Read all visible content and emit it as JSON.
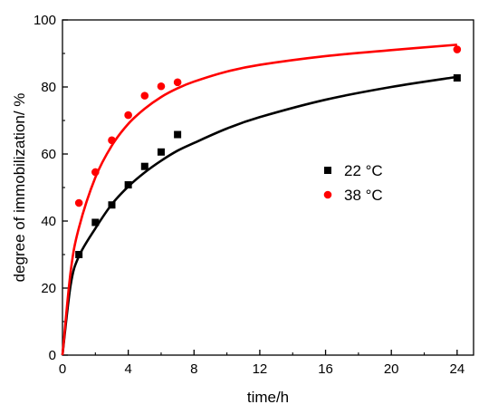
{
  "chart_data": {
    "type": "scatter",
    "xlabel": "time/h",
    "ylabel": "degree of immobilization/ %",
    "xlim": [
      0,
      25
    ],
    "ylim": [
      0,
      100
    ],
    "xticks": [
      0,
      4,
      8,
      12,
      16,
      20,
      24
    ],
    "yticks": [
      0,
      20,
      40,
      60,
      80,
      100
    ],
    "grid": false,
    "legend_position": "right",
    "series": [
      {
        "name": "22 °C",
        "color": "#000000",
        "marker": "square",
        "points": [
          [
            1,
            30
          ],
          [
            2,
            39.6
          ],
          [
            3,
            44.8
          ],
          [
            4,
            50.8
          ],
          [
            5,
            56.3
          ],
          [
            6,
            60.6
          ],
          [
            7,
            65.8
          ],
          [
            24,
            82.7
          ]
        ],
        "fit_curve": [
          [
            0,
            0
          ],
          [
            0.5,
            21
          ],
          [
            1,
            29.5
          ],
          [
            2,
            37.8
          ],
          [
            3,
            45
          ],
          [
            4,
            50.3
          ],
          [
            5,
            54.5
          ],
          [
            6,
            58
          ],
          [
            7,
            61
          ],
          [
            8,
            63.3
          ],
          [
            10,
            67.6
          ],
          [
            12,
            71
          ],
          [
            16,
            76.2
          ],
          [
            20,
            80
          ],
          [
            24,
            83
          ]
        ]
      },
      {
        "name": "38 °C",
        "color": "#ff0000",
        "marker": "circle",
        "points": [
          [
            1,
            45.4
          ],
          [
            2,
            54.6
          ],
          [
            3,
            64.1
          ],
          [
            4,
            71.6
          ],
          [
            5,
            77.4
          ],
          [
            6,
            80.2
          ],
          [
            7,
            81.4
          ],
          [
            24,
            91.2
          ]
        ],
        "fit_curve": [
          [
            0,
            0
          ],
          [
            0.5,
            25
          ],
          [
            1,
            38
          ],
          [
            2,
            53
          ],
          [
            3,
            62.5
          ],
          [
            4,
            69
          ],
          [
            5,
            73.5
          ],
          [
            6,
            77
          ],
          [
            7,
            79.6
          ],
          [
            8,
            81.6
          ],
          [
            10,
            84.6
          ],
          [
            12,
            86.6
          ],
          [
            16,
            89.2
          ],
          [
            20,
            91
          ],
          [
            24,
            92.6
          ]
        ]
      }
    ]
  }
}
